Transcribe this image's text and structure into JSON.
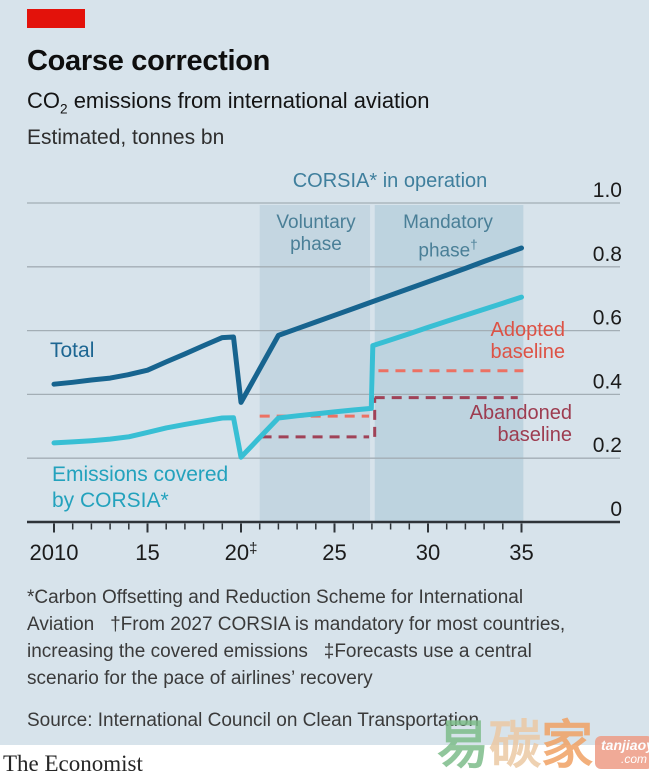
{
  "header": {
    "brand_tab_color": "#e3120b",
    "title": "Coarse correction",
    "subtitle_prefix": "CO",
    "subtitle_sub": "2",
    "subtitle_rest": " emissions from international aviation",
    "unit_note": "Estimated, tonnes bn"
  },
  "annotations": {
    "corsia": "CORSIA* in operation",
    "voluntary": {
      "line1": "Voluntary",
      "line2": "phase"
    },
    "mandatory": {
      "line1": "Mandatory",
      "line2": "phase",
      "sup": "†"
    },
    "total_label": "Total",
    "covered_label": {
      "line1": "Emissions covered",
      "line2": "by CORSIA*"
    },
    "adopted_label": {
      "line1": "Adopted",
      "line2": "baseline"
    },
    "abandoned_label": {
      "line1": "Abandoned",
      "line2": "baseline"
    }
  },
  "chart_data": {
    "type": "line",
    "title": "Coarse correction",
    "subtitle": "CO2 emissions from international aviation",
    "ylabel": "tonnes bn (estimated)",
    "x_axis": {
      "min": 2010,
      "max": 2035,
      "minor_tick_every": 1,
      "labeled_ticks": [
        {
          "year": 2010,
          "label": "2010"
        },
        {
          "year": 2015,
          "label": "15"
        },
        {
          "year": 2020,
          "label": "20",
          "sup": "‡"
        },
        {
          "year": 2025,
          "label": "25"
        },
        {
          "year": 2030,
          "label": "30"
        },
        {
          "year": 2035,
          "label": "35"
        }
      ]
    },
    "y_axis": {
      "min": 0,
      "max": 1.0,
      "side": "right",
      "grid": true,
      "ticks": [
        {
          "v": 0,
          "label": "0"
        },
        {
          "v": 0.2,
          "label": "0.2"
        },
        {
          "v": 0.4,
          "label": "0.4"
        },
        {
          "v": 0.6,
          "label": "0.6"
        },
        {
          "v": 0.8,
          "label": "0.8"
        },
        {
          "v": 1.0,
          "label": "1.0"
        }
      ]
    },
    "bands": [
      {
        "key": "voluntary-phase-band",
        "label": "Voluntary phase",
        "from": 2021,
        "to": 2026.9,
        "color": "#c4d6e1"
      },
      {
        "key": "mandatory-phase-band",
        "label": "Mandatory phase",
        "from": 2027.15,
        "to": 2035.1,
        "color": "#bdd3df"
      }
    ],
    "series": [
      {
        "key": "total-line",
        "name": "Total",
        "color": "#17648f",
        "width": 5,
        "points": [
          [
            2010,
            0.432
          ],
          [
            2011,
            0.438
          ],
          [
            2012,
            0.445
          ],
          [
            2013,
            0.451
          ],
          [
            2014,
            0.462
          ],
          [
            2015,
            0.476
          ],
          [
            2016,
            0.502
          ],
          [
            2017,
            0.527
          ],
          [
            2018,
            0.553
          ],
          [
            2019,
            0.578
          ],
          [
            2019.6,
            0.58
          ],
          [
            2020,
            0.375
          ],
          [
            2021,
            0.48
          ],
          [
            2022,
            0.585
          ],
          [
            2023,
            0.606
          ],
          [
            2024,
            0.627
          ],
          [
            2025,
            0.648
          ],
          [
            2026,
            0.669
          ],
          [
            2027,
            0.69
          ],
          [
            2028,
            0.711
          ],
          [
            2029,
            0.732
          ],
          [
            2030,
            0.753
          ],
          [
            2031,
            0.774
          ],
          [
            2032,
            0.795
          ],
          [
            2033,
            0.817
          ],
          [
            2034,
            0.838
          ],
          [
            2035,
            0.859
          ]
        ]
      },
      {
        "key": "covered-line",
        "name": "Emissions covered by CORSIA*",
        "color": "#38bfd4",
        "width": 5,
        "points": [
          [
            2010,
            0.248
          ],
          [
            2011,
            0.251
          ],
          [
            2012,
            0.255
          ],
          [
            2013,
            0.26
          ],
          [
            2014,
            0.267
          ],
          [
            2015,
            0.281
          ],
          [
            2016,
            0.295
          ],
          [
            2017,
            0.306
          ],
          [
            2018,
            0.316
          ],
          [
            2019,
            0.326
          ],
          [
            2019.6,
            0.327
          ],
          [
            2020,
            0.203
          ],
          [
            2021,
            0.265
          ],
          [
            2022,
            0.326
          ],
          [
            2023,
            0.333
          ],
          [
            2024,
            0.339
          ],
          [
            2025,
            0.345
          ],
          [
            2026,
            0.351
          ],
          [
            2026.97,
            0.356
          ],
          [
            2027.05,
            0.553
          ],
          [
            2028,
            0.571
          ],
          [
            2029,
            0.59
          ],
          [
            2030,
            0.61
          ],
          [
            2031,
            0.629
          ],
          [
            2032,
            0.648
          ],
          [
            2033,
            0.667
          ],
          [
            2034,
            0.686
          ],
          [
            2035,
            0.705
          ]
        ]
      }
    ],
    "baselines": [
      {
        "key": "adopted-baseline-line",
        "name": "Adopted baseline",
        "color": "#ec7163",
        "width": 3,
        "dash": [
          10,
          7
        ],
        "segments": [
          [
            [
              2021,
              0.332
            ],
            [
              2026.85,
              0.332
            ]
          ],
          [
            [
              2027.35,
              0.474
            ],
            [
              2035.1,
              0.474
            ]
          ]
        ]
      },
      {
        "key": "abandoned-baseline-line",
        "name": "Abandoned baseline",
        "color": "#a04257",
        "width": 3,
        "dash": [
          10,
          7
        ],
        "segments": [
          [
            [
              2021.1,
              0.267
            ],
            [
              2026.85,
              0.267
            ]
          ],
          [
            [
              2027.15,
              0.267
            ],
            [
              2027.15,
              0.39
            ]
          ],
          [
            [
              2027.15,
              0.39
            ],
            [
              2034.8,
              0.39
            ]
          ]
        ]
      }
    ]
  },
  "footnotes": {
    "lines": [
      "*Carbon Offsetting and Reduction Scheme for International",
      "Aviation   †From 2027 CORSIA is mandatory for most countries,",
      "increasing the covered emissions   ‡Forecasts use a central",
      "scenario for the pace of airlines’ recovery"
    ]
  },
  "source": "Source: International Council on Clean Transportation",
  "brand": "The Economist",
  "watermark": {
    "chars": [
      "易",
      "碳",
      "家"
    ],
    "domain": "tanjiaoyi",
    "tld": ".com"
  }
}
